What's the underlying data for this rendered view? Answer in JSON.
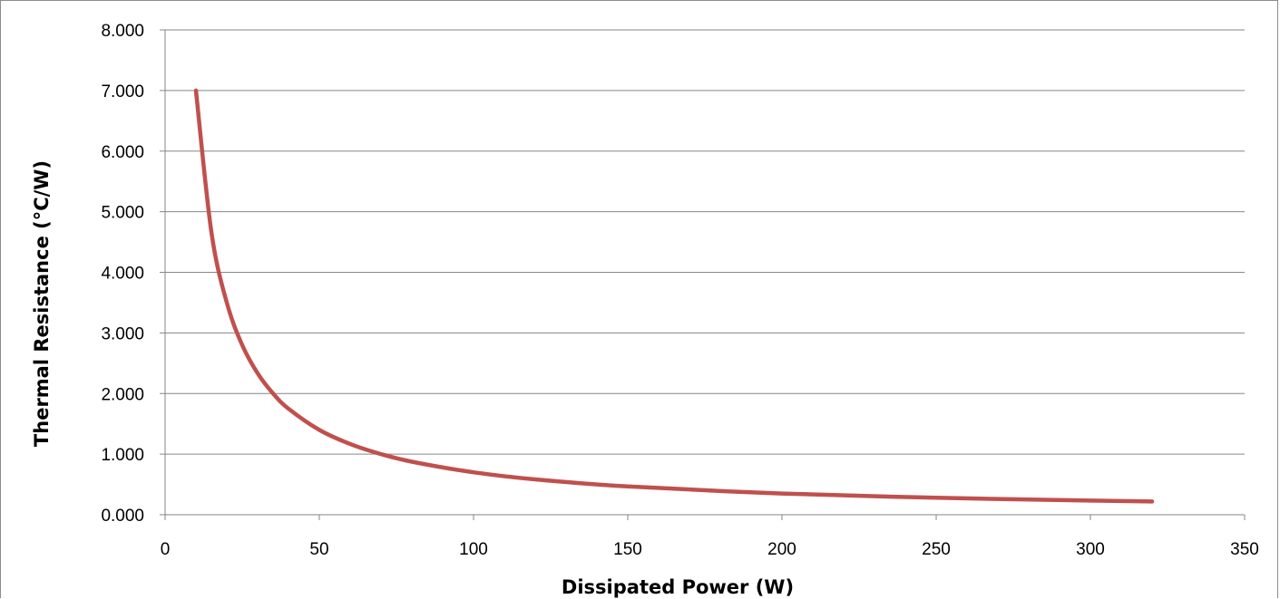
{
  "chart_data": {
    "type": "line",
    "title": "",
    "xlabel": "Dissipated Power (W)",
    "ylabel": "Thermal Resistance (°C/W)",
    "xlim": [
      0,
      350
    ],
    "ylim": [
      0,
      8
    ],
    "x_ticks": [
      "0",
      "50",
      "100",
      "150",
      "200",
      "250",
      "300",
      "350"
    ],
    "y_ticks": [
      "0.000",
      "1.000",
      "2.000",
      "3.000",
      "4.000",
      "5.000",
      "6.000",
      "7.000",
      "8.000"
    ],
    "grid": "horizontal",
    "legend": "none",
    "series": [
      {
        "color": "#c0504d",
        "x": [
          10,
          15,
          20,
          25,
          30,
          35,
          40,
          50,
          60,
          70,
          80,
          100,
          120,
          150,
          200,
          250,
          300,
          320
        ],
        "y": [
          7.0,
          4.667,
          3.5,
          2.8,
          2.333,
          2.0,
          1.75,
          1.4,
          1.167,
          1.0,
          0.875,
          0.7,
          0.583,
          0.467,
          0.35,
          0.28,
          0.233,
          0.219
        ]
      }
    ]
  }
}
